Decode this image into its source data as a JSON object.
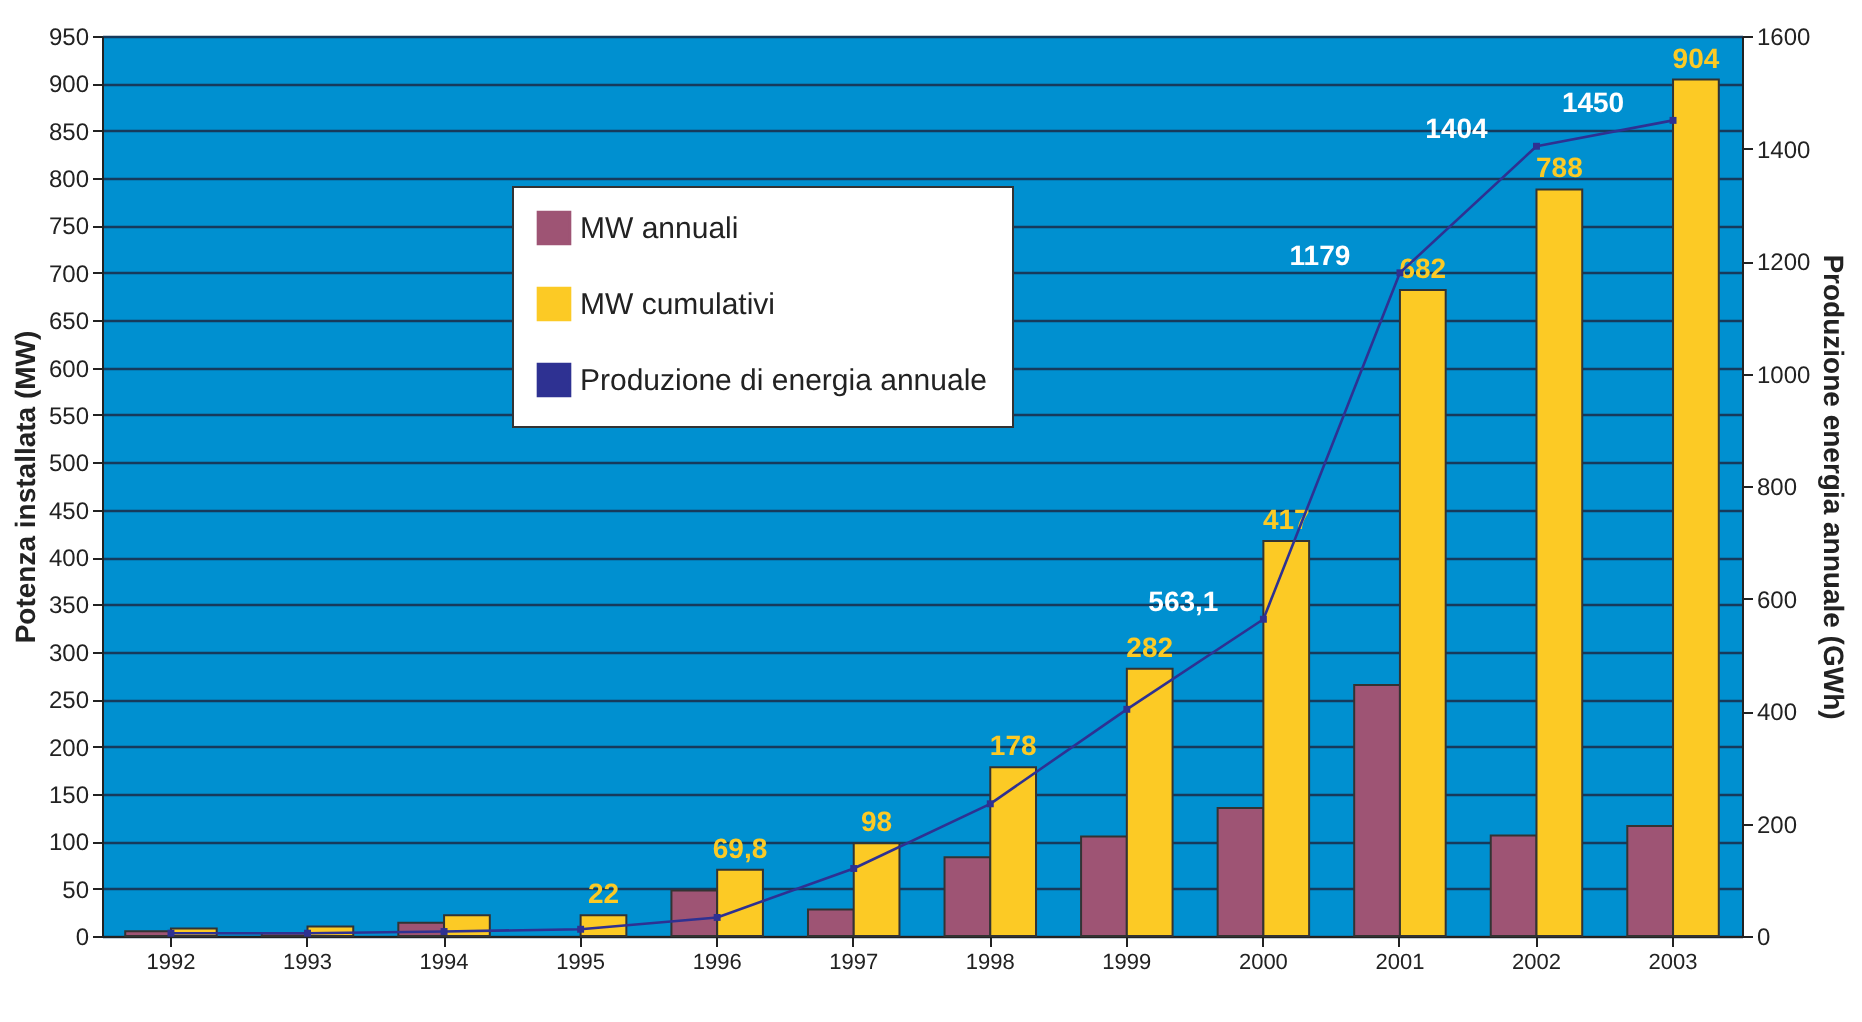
{
  "chart_data": {
    "type": "bar",
    "xlabel": null,
    "ylabel": "Potenza installata (MW)",
    "y2label": "Produzione energia annuale (GWh)",
    "categories": [
      "1992",
      "1993",
      "1994",
      "1995",
      "1996",
      "1997",
      "1998",
      "1999",
      "2000",
      "2001",
      "2002",
      "2003"
    ],
    "series": [
      {
        "name": "MW annuali",
        "color": "#9e5474",
        "values": [
          5,
          3,
          14,
          null,
          48,
          28,
          83,
          105,
          135,
          265,
          106,
          116
        ]
      },
      {
        "name": "MW cumulativi",
        "color": "#fcca25",
        "values": [
          8,
          10,
          22,
          22,
          69.8,
          98,
          178,
          282,
          417,
          682,
          788,
          904
        ],
        "value_labels": [
          null,
          null,
          null,
          "22",
          "69,8",
          "98",
          "178",
          "282",
          "417",
          "682",
          "788",
          "904"
        ]
      },
      {
        "name": "Produzione di energia annuale",
        "type": "line",
        "axis": "y2",
        "color": "#2e3192",
        "marker": "square",
        "values": [
          5,
          5,
          8,
          12,
          33,
          120,
          235,
          403,
          563.1,
          1179,
          1404,
          1450
        ],
        "value_labels": [
          null,
          null,
          null,
          null,
          null,
          null,
          null,
          null,
          "563,1",
          "1179",
          "1404",
          "1450"
        ]
      }
    ],
    "ylim": [
      0,
      950
    ],
    "yticks": [
      0,
      50,
      100,
      150,
      200,
      250,
      300,
      350,
      400,
      450,
      500,
      550,
      600,
      650,
      700,
      750,
      800,
      850,
      900,
      950
    ],
    "y2lim": [
      0,
      1600
    ],
    "y2ticks": [
      0,
      200,
      400,
      600,
      800,
      1000,
      1200,
      1400,
      1600
    ],
    "grid": "y",
    "legend": "top left"
  }
}
